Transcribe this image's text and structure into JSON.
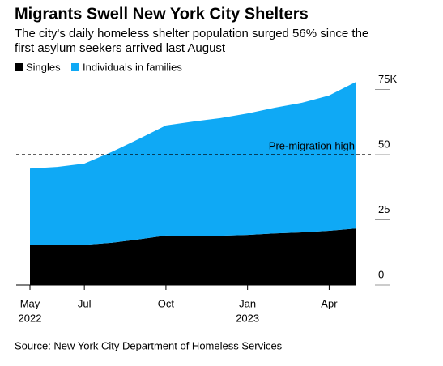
{
  "chart_data": {
    "type": "stacked_area",
    "title": "Migrants Swell New York City Shelters",
    "subtitle": [
      "The city's daily homeless shelter population surged 56% since the",
      "first asylum seekers arrived last August"
    ],
    "source": "Source: New York City Department of Homeless Services",
    "x": [
      "2022-05",
      "2022-06",
      "2022-07",
      "2022-08",
      "2022-09",
      "2022-10",
      "2022-11",
      "2022-12",
      "2023-01",
      "2023-02",
      "2023-03",
      "2023-04",
      "2023-05"
    ],
    "xlim": [
      "2022-05",
      "2023-05"
    ],
    "series": [
      {
        "name": "Singles",
        "color": "#000000",
        "values": [
          15.5,
          15.5,
          15.4,
          16.2,
          17.5,
          19,
          18.8,
          18.9,
          19.2,
          19.8,
          20.2,
          20.8,
          21.7
        ]
      },
      {
        "name": "Individuals in families",
        "color": "#0fa9f5",
        "values": [
          29.2,
          29.8,
          31.2,
          34.8,
          38.5,
          42.2,
          43.9,
          45.1,
          46.6,
          48.2,
          49.7,
          51.9,
          56.3
        ]
      }
    ],
    "ylim": [
      0,
      80
    ],
    "yticks": [
      0,
      25,
      50,
      {
        "value": 75,
        "label": "75K"
      }
    ],
    "xticks": [
      {
        "value": "2022-05",
        "label": "May"
      },
      {
        "value": "2022-07",
        "label": "Jul"
      },
      {
        "value": "2022-10",
        "label": "Oct"
      },
      {
        "value": "2023-01",
        "label": "Jan"
      },
      {
        "value": "2023-04",
        "label": "Apr"
      }
    ],
    "xtick_years": [
      {
        "value": "2022-05",
        "label": "2022"
      },
      {
        "value": "2023-01",
        "label": "2023"
      }
    ],
    "annotation": {
      "text": "Pre-migration high",
      "value": 50
    }
  }
}
